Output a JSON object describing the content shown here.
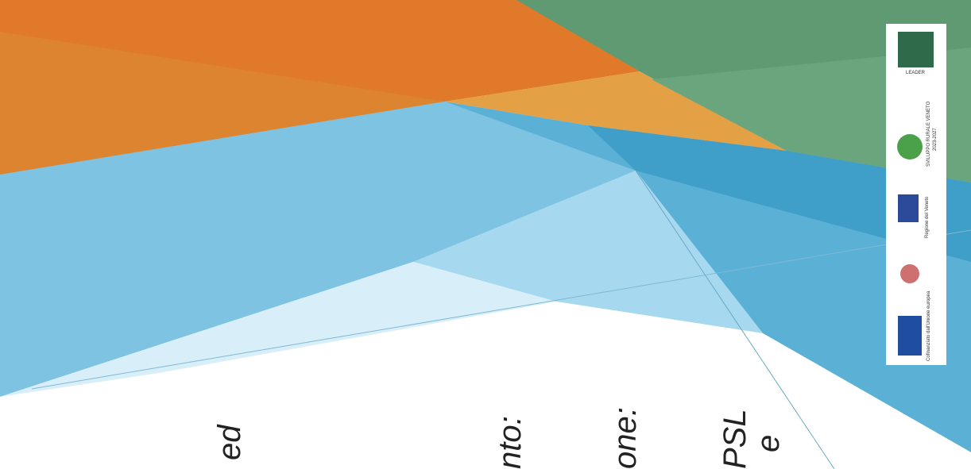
{
  "fragments": [
    "ed",
    "nto:",
    "one:",
    "PSL",
    "e"
  ],
  "logos": {
    "leader": "LEADER",
    "rural": "SVILUPPO RURALE VENETO",
    "years": "2023-2027",
    "region": "Regione del Veneto",
    "eu": "Cofinanziato dall'Unione europea"
  }
}
